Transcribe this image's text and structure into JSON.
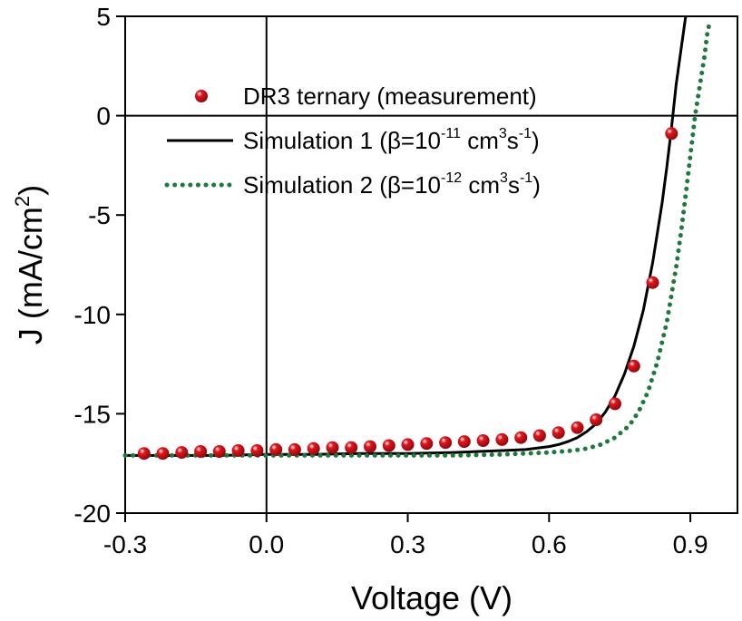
{
  "chart_data": {
    "type": "line",
    "title": "",
    "xlabel": "Voltage (V)",
    "ylabel": "J (mA/cm",
    "ylabel_sup": "2",
    "ylabel_end": ")",
    "xlim": [
      -0.3,
      1.0
    ],
    "ylim": [
      -20,
      5
    ],
    "xticks": [
      -0.3,
      0.0,
      0.3,
      0.6,
      0.9
    ],
    "xtick_labels": [
      "-0.3",
      "0.0",
      "0.3",
      "0.6",
      "0.9"
    ],
    "yticks": [
      -20,
      -15,
      -10,
      -5,
      0,
      5
    ],
    "ytick_labels": [
      "-20",
      "-15",
      "-10",
      "-5",
      "0",
      "5"
    ],
    "grid": false,
    "reference_lines": {
      "x": 0,
      "y": 0
    },
    "legend_position": "top-right",
    "series": [
      {
        "name": "DR3 ternary (measurement)",
        "legend": {
          "main": "DR3 ternary (measurement)"
        },
        "style": "markers",
        "color": "#e8141b",
        "x": [
          -0.26,
          -0.22,
          -0.18,
          -0.14,
          -0.1,
          -0.06,
          -0.02,
          0.02,
          0.06,
          0.1,
          0.14,
          0.18,
          0.22,
          0.26,
          0.3,
          0.34,
          0.38,
          0.42,
          0.46,
          0.5,
          0.54,
          0.58,
          0.62,
          0.66,
          0.7,
          0.74,
          0.78,
          0.82,
          0.86
        ],
        "y": [
          -17.0,
          -17.0,
          -16.95,
          -16.9,
          -16.9,
          -16.85,
          -16.85,
          -16.8,
          -16.8,
          -16.75,
          -16.7,
          -16.7,
          -16.65,
          -16.6,
          -16.55,
          -16.5,
          -16.45,
          -16.4,
          -16.35,
          -16.3,
          -16.2,
          -16.1,
          -15.95,
          -15.7,
          -15.3,
          -14.5,
          -12.6,
          -8.4,
          -0.9
        ]
      },
      {
        "name": "Simulation 1",
        "legend": {
          "main": "Simulation 1 (β=10",
          "sup1": "-11",
          "mid": " cm",
          "sup2": "3",
          "mid2": "s",
          "sup3": "-1",
          "end": ")"
        },
        "style": "solid",
        "color": "#000000",
        "x": [
          -0.3,
          -0.2,
          -0.1,
          0.0,
          0.1,
          0.2,
          0.3,
          0.4,
          0.45,
          0.5,
          0.55,
          0.6,
          0.62,
          0.64,
          0.66,
          0.68,
          0.7,
          0.72,
          0.74,
          0.76,
          0.78,
          0.8,
          0.82,
          0.84,
          0.85,
          0.86,
          0.865,
          0.87,
          0.88,
          0.89
        ],
        "y": [
          -17.1,
          -17.1,
          -17.1,
          -17.05,
          -17.05,
          -17.0,
          -17.0,
          -16.95,
          -16.9,
          -16.85,
          -16.8,
          -16.65,
          -16.55,
          -16.4,
          -16.2,
          -15.9,
          -15.5,
          -14.9,
          -14.1,
          -13.0,
          -11.6,
          -9.8,
          -7.4,
          -4.4,
          -2.6,
          -0.6,
          0.5,
          1.6,
          3.3,
          5.0
        ]
      },
      {
        "name": "Simulation 2",
        "legend": {
          "main": "Simulation 2 (β=10",
          "sup1": "-12",
          "mid": " cm",
          "sup2": "3",
          "mid2": "s",
          "sup3": "-1",
          "end": ")"
        },
        "style": "dotted",
        "color": "#1e7a3c",
        "x": [
          -0.3,
          -0.2,
          -0.1,
          0.0,
          0.1,
          0.2,
          0.3,
          0.4,
          0.5,
          0.55,
          0.6,
          0.65,
          0.68,
          0.71,
          0.74,
          0.77,
          0.79,
          0.81,
          0.83,
          0.85,
          0.87,
          0.88,
          0.89,
          0.9,
          0.91,
          0.92,
          0.93,
          0.935,
          0.94
        ],
        "y": [
          -17.1,
          -17.1,
          -17.1,
          -17.1,
          -17.1,
          -17.1,
          -17.1,
          -17.1,
          -17.05,
          -17.0,
          -16.95,
          -16.85,
          -16.75,
          -16.55,
          -16.2,
          -15.6,
          -14.9,
          -13.9,
          -12.4,
          -10.4,
          -7.6,
          -5.9,
          -4.0,
          -2.0,
          0.0,
          1.5,
          3.0,
          4.0,
          4.6
        ]
      }
    ]
  }
}
